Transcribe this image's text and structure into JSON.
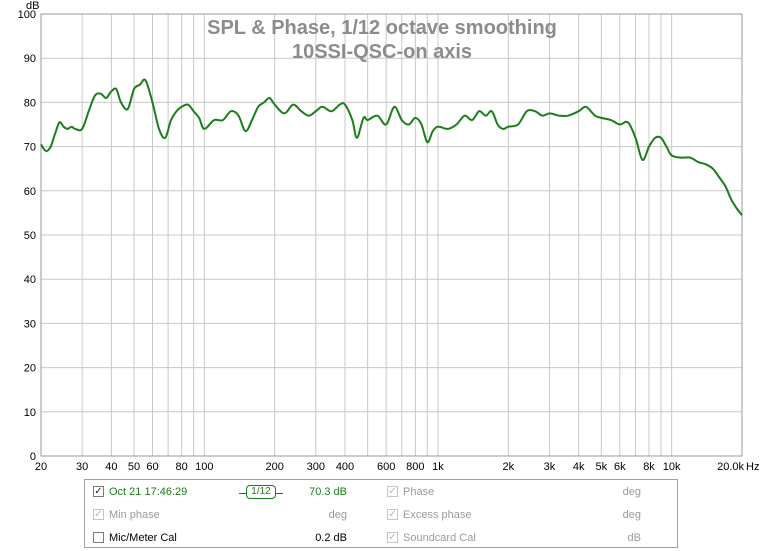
{
  "chart_data": {
    "type": "line",
    "title": "SPL & Phase, 1/12 octave smoothing",
    "subtitle": "10SSI-QSC-on axis",
    "ylabel": "dB",
    "xlabel": "Hz",
    "xscale": "log",
    "xlim": [
      20,
      20000
    ],
    "ylim": [
      0,
      100
    ],
    "y_ticks": [
      0,
      10,
      20,
      30,
      40,
      50,
      60,
      70,
      80,
      90,
      100
    ],
    "x_tick_values": [
      20,
      30,
      40,
      50,
      60,
      80,
      100,
      200,
      300,
      400,
      600,
      800,
      1000,
      2000,
      3000,
      4000,
      5000,
      6000,
      8000,
      10000,
      20000
    ],
    "x_tick_labels": [
      "20",
      "30",
      "40",
      "50",
      "60",
      "80",
      "100",
      "200",
      "300",
      "400",
      "600",
      "800",
      "1k",
      "2k",
      "3k",
      "4k",
      "5k",
      "6k",
      "8k",
      "10k",
      "20.0k"
    ],
    "grid": true,
    "series": [
      {
        "name": "Oct 21 17:46:29",
        "color": "#1a7d1a",
        "x": [
          20,
          21,
          22,
          23,
          24,
          25,
          26,
          27,
          28,
          30,
          32,
          34,
          36,
          38,
          40,
          42,
          44,
          47,
          50,
          53,
          56,
          60,
          64,
          68,
          72,
          76,
          80,
          85,
          90,
          95,
          100,
          110,
          120,
          130,
          140,
          150,
          160,
          170,
          180,
          190,
          200,
          220,
          240,
          260,
          280,
          300,
          320,
          350,
          380,
          400,
          430,
          450,
          480,
          500,
          550,
          600,
          650,
          700,
          750,
          800,
          850,
          900,
          950,
          1000,
          1100,
          1200,
          1300,
          1400,
          1500,
          1600,
          1700,
          1800,
          1900,
          2000,
          2200,
          2400,
          2600,
          2800,
          3000,
          3300,
          3600,
          4000,
          4300,
          4700,
          5000,
          5500,
          6000,
          6500,
          7000,
          7500,
          8000,
          8500,
          9000,
          9500,
          10000,
          11000,
          12000,
          13000,
          14000,
          15000,
          16000,
          17000,
          18000,
          19000,
          20000
        ],
        "y": [
          70.5,
          69,
          70,
          73,
          75.5,
          74.5,
          74,
          74.5,
          74,
          74,
          78,
          81.5,
          82,
          81,
          82.5,
          83,
          80,
          78.5,
          83,
          84,
          85,
          80,
          74,
          72,
          76,
          78,
          79,
          79.5,
          78,
          76.5,
          74,
          76,
          76,
          78,
          77,
          73.5,
          76,
          79,
          80,
          81,
          79.5,
          77.5,
          79.5,
          78,
          77,
          78,
          79,
          78,
          79.5,
          79.5,
          76,
          72,
          76.5,
          76,
          77,
          75,
          79,
          76,
          75,
          76.5,
          75,
          71,
          73.5,
          74.5,
          74,
          75,
          77,
          76,
          78,
          77,
          78,
          75,
          74,
          74.5,
          75,
          78,
          78,
          77,
          77.5,
          77,
          77,
          78,
          79,
          77,
          76.5,
          76,
          75,
          75.5,
          72,
          67,
          70,
          72,
          72,
          70,
          68,
          67.5,
          67.5,
          66.5,
          66,
          65,
          63,
          61,
          58,
          56,
          54.5
        ]
      }
    ]
  },
  "legend": {
    "row1": {
      "trace_name": "Oct 21 17:46:29",
      "smoothing_label": "1/12",
      "trace_value": "70.3 dB",
      "right_label": "Phase",
      "right_unit": "deg"
    },
    "row2": {
      "left_label": "Min phase",
      "left_unit": "deg",
      "right_label": "Excess phase",
      "right_unit": "deg"
    },
    "row3": {
      "left_label": "Mic/Meter Cal",
      "left_unit": "0.2 dB",
      "right_label": "Soundcard Cal",
      "right_unit": "dB"
    }
  },
  "colors": {
    "trace": "#1a7d1a",
    "grid": "#c8c8c8",
    "title": "#8c8c8c"
  }
}
